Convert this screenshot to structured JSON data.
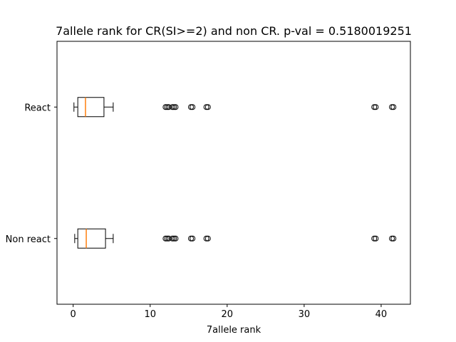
{
  "chart_data": {
    "type": "boxplot",
    "orientation": "horizontal",
    "title": "7allele rank for CR(SI>=2) and non CR. p-val = 0.5180019251",
    "xlabel": "7allele rank",
    "ylabel": "",
    "xlim": [
      -2.1,
      43.8
    ],
    "xticks": [
      0,
      10,
      20,
      30,
      40
    ],
    "xtick_labels": [
      "0",
      "10",
      "20",
      "30",
      "40"
    ],
    "categories": [
      "Non react",
      "React"
    ],
    "grid": false,
    "series": [
      {
        "category": "Non react",
        "whisker_low": 0.2,
        "q1": 0.6,
        "median": 1.7,
        "q3": 4.2,
        "whisker_high": 5.2,
        "outliers": [
          12.0,
          12.2,
          12.4,
          12.9,
          13.1,
          13.3,
          15.3,
          15.5,
          17.3,
          17.5,
          39.1,
          39.3,
          41.4,
          41.6
        ]
      },
      {
        "category": "React",
        "whisker_low": 0.1,
        "q1": 0.6,
        "median": 1.6,
        "q3": 4.0,
        "whisker_high": 5.2,
        "outliers": [
          12.0,
          12.2,
          12.4,
          12.9,
          13.1,
          13.3,
          15.3,
          15.5,
          17.3,
          17.5,
          39.1,
          39.3,
          41.4,
          41.6
        ]
      }
    ],
    "colors": {
      "box": "#000000",
      "median": "#ff7f0e",
      "outlier": "#000000",
      "background": "#ffffff"
    }
  }
}
